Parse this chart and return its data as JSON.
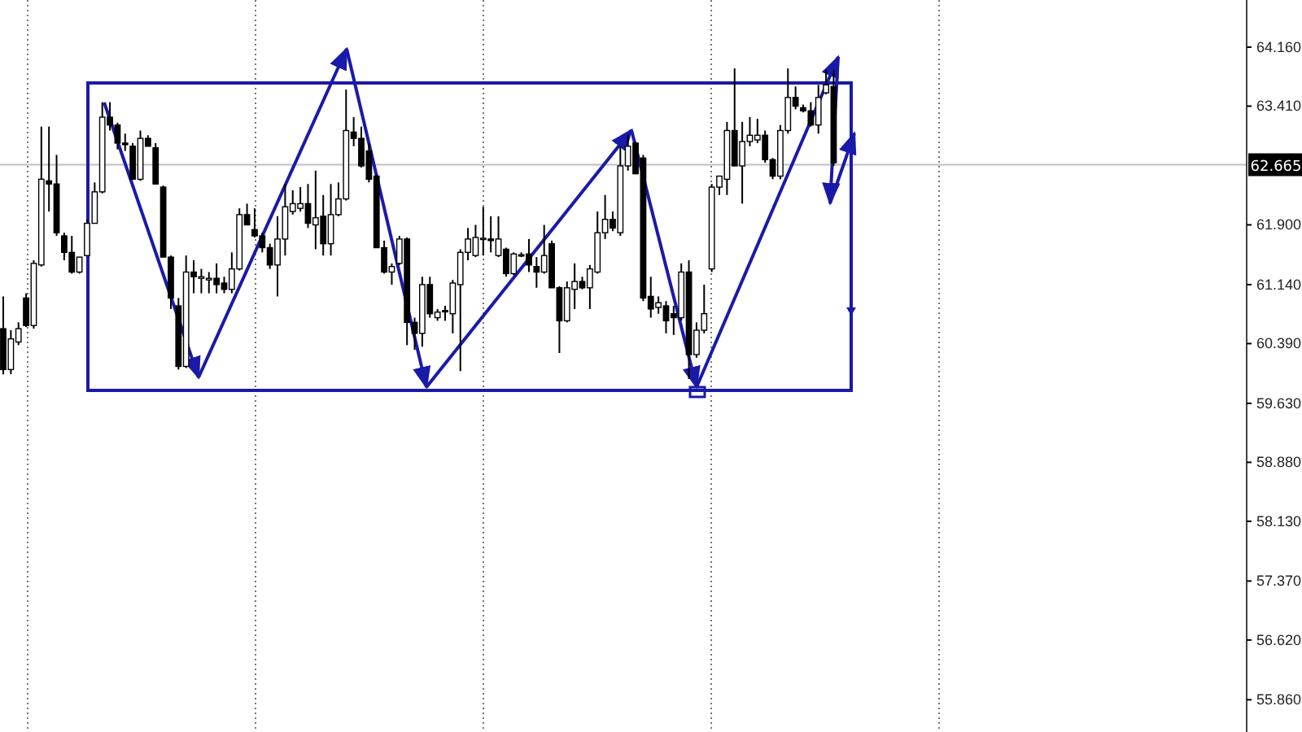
{
  "chart_data": {
    "type": "candlestick",
    "tick_labels": "y",
    "ylim": [
      55.45,
      64.76
    ],
    "yticks": [
      {
        "value": 64.16,
        "label": "64.160"
      },
      {
        "value": 63.41,
        "label": "63.410"
      },
      {
        "value": 61.9,
        "label": "61.900"
      },
      {
        "value": 61.14,
        "label": "61.140"
      },
      {
        "value": 60.39,
        "label": "60.390"
      },
      {
        "value": 59.63,
        "label": "59.630"
      },
      {
        "value": 58.88,
        "label": "58.880"
      },
      {
        "value": 58.13,
        "label": "58.130"
      },
      {
        "value": 57.37,
        "label": "57.370"
      },
      {
        "value": 56.62,
        "label": "56.620"
      },
      {
        "value": 55.86,
        "label": "55.860"
      }
    ],
    "ref_lines": [
      {
        "axis": "y",
        "value": 62.665,
        "label": "62.665",
        "color": "#c0c0c0"
      }
    ],
    "categories": [
      null,
      null,
      null,
      null,
      null,
      null,
      null,
      null,
      null,
      null,
      null,
      null,
      null,
      null,
      null,
      null,
      null,
      null,
      null,
      null,
      null,
      null,
      null,
      null,
      null,
      null,
      null,
      null,
      null,
      null,
      null,
      null,
      null,
      null,
      null,
      null,
      null,
      null,
      null,
      null,
      null,
      null,
      null,
      null,
      null,
      null,
      null,
      null,
      null,
      null,
      null,
      null,
      null,
      null,
      null,
      null,
      null,
      null,
      null,
      null,
      null,
      null,
      null,
      null,
      null,
      null,
      null,
      null,
      null,
      null,
      null,
      null,
      null,
      null,
      null,
      null,
      null,
      null,
      null,
      null,
      null,
      null,
      null,
      null,
      null,
      null,
      null,
      null,
      null,
      null,
      null,
      null,
      null,
      null,
      null,
      null,
      null,
      null,
      null,
      null,
      null,
      null,
      null,
      null,
      null,
      null,
      null,
      null,
      null,
      null,
      null,
      null,
      null,
      null,
      null,
      null,
      null,
      null,
      null,
      null,
      null,
      null,
      null,
      null,
      null,
      null,
      null,
      null,
      null,
      null,
      null,
      null,
      null,
      null,
      null,
      null,
      null,
      null,
      null,
      null,
      null,
      null,
      null,
      null,
      null,
      null,
      null,
      null,
      null,
      null,
      null,
      null,
      null,
      null,
      null,
      null,
      null,
      null,
      null,
      null,
      null,
      null,
      null,
      null
    ],
    "ohlc": [
      [
        60.58,
        60.99,
        60.0,
        60.06
      ],
      [
        60.06,
        60.56,
        60.0,
        60.45
      ],
      [
        60.41,
        60.66,
        60.37,
        60.58
      ],
      [
        60.97,
        61.03,
        60.6,
        60.62
      ],
      [
        60.62,
        61.45,
        60.58,
        61.41
      ],
      [
        61.39,
        63.15,
        61.37,
        62.48
      ],
      [
        62.46,
        63.15,
        62.07,
        62.42
      ],
      [
        62.42,
        62.79,
        61.76,
        61.8
      ],
      [
        61.76,
        61.8,
        61.45,
        61.55
      ],
      [
        61.55,
        61.76,
        61.28,
        61.3
      ],
      [
        61.3,
        61.49,
        61.28,
        61.49
      ],
      [
        61.51,
        61.97,
        61.51,
        61.92
      ],
      [
        61.92,
        62.44,
        61.92,
        62.32
      ],
      [
        62.32,
        63.46,
        62.3,
        63.27
      ],
      [
        63.27,
        63.46,
        63.1,
        63.17
      ],
      [
        63.17,
        63.2,
        62.86,
        62.94
      ],
      [
        62.94,
        63.06,
        62.84,
        62.92
      ],
      [
        62.9,
        62.94,
        62.48,
        62.48
      ],
      [
        62.48,
        63.1,
        62.46,
        63.0
      ],
      [
        63.0,
        63.04,
        62.9,
        62.9
      ],
      [
        62.88,
        62.94,
        62.42,
        62.42
      ],
      [
        62.38,
        62.4,
        61.49,
        61.49
      ],
      [
        61.49,
        61.51,
        60.83,
        60.97
      ],
      [
        60.87,
        60.97,
        60.06,
        60.1
      ],
      [
        60.1,
        61.51,
        60.08,
        61.3
      ],
      [
        61.3,
        61.45,
        61.03,
        61.24
      ],
      [
        61.22,
        61.34,
        61.03,
        61.24
      ],
      [
        61.2,
        61.3,
        61.03,
        61.22
      ],
      [
        61.22,
        61.41,
        61.03,
        61.14
      ],
      [
        61.16,
        61.24,
        61.03,
        61.08
      ],
      [
        61.08,
        61.55,
        61.03,
        61.34
      ],
      [
        61.34,
        62.11,
        61.32,
        62.03
      ],
      [
        62.03,
        62.17,
        61.9,
        61.9
      ],
      [
        61.84,
        62.11,
        61.74,
        61.76
      ],
      [
        61.76,
        61.8,
        61.55,
        61.61
      ],
      [
        61.61,
        61.66,
        61.34,
        61.39
      ],
      [
        61.39,
        62.01,
        60.99,
        61.72
      ],
      [
        61.72,
        62.42,
        61.51,
        62.13
      ],
      [
        62.07,
        62.34,
        62.03,
        62.17
      ],
      [
        62.11,
        62.38,
        62.07,
        62.17
      ],
      [
        62.17,
        62.42,
        61.86,
        61.92
      ],
      [
        61.9,
        62.59,
        61.59,
        61.99
      ],
      [
        62.01,
        62.28,
        61.51,
        61.66
      ],
      [
        61.66,
        62.42,
        61.51,
        62.03
      ],
      [
        62.03,
        62.44,
        62.01,
        62.23
      ],
      [
        62.23,
        63.62,
        62.21,
        63.1
      ],
      [
        63.08,
        63.27,
        62.9,
        63.0
      ],
      [
        63.0,
        63.15,
        62.63,
        62.65
      ],
      [
        62.84,
        62.94,
        62.44,
        62.48
      ],
      [
        62.52,
        62.54,
        61.61,
        61.61
      ],
      [
        61.61,
        61.7,
        61.28,
        61.3
      ],
      [
        61.3,
        61.41,
        61.14,
        61.37
      ],
      [
        61.41,
        61.76,
        61.39,
        61.72
      ],
      [
        61.72,
        61.74,
        60.37,
        60.66
      ],
      [
        60.66,
        60.72,
        60.31,
        60.52
      ],
      [
        60.52,
        61.24,
        60.35,
        61.14
      ],
      [
        61.14,
        61.24,
        60.72,
        60.77
      ],
      [
        60.72,
        60.83,
        60.68,
        60.79
      ],
      [
        60.81,
        60.87,
        60.68,
        60.8
      ],
      [
        60.77,
        61.2,
        60.52,
        61.16
      ],
      [
        61.14,
        61.59,
        60.04,
        61.55
      ],
      [
        61.55,
        61.86,
        61.45,
        61.72
      ],
      [
        61.51,
        61.9,
        61.49,
        61.74
      ],
      [
        61.72,
        62.13,
        61.51,
        61.73
      ],
      [
        61.72,
        62.01,
        61.55,
        61.7
      ],
      [
        61.51,
        62.01,
        61.49,
        61.72
      ],
      [
        61.59,
        61.61,
        61.24,
        61.28
      ],
      [
        61.28,
        61.55,
        61.26,
        61.53
      ],
      [
        61.51,
        61.55,
        61.49,
        61.52
      ],
      [
        61.53,
        61.72,
        61.3,
        61.39
      ],
      [
        61.37,
        61.49,
        61.1,
        61.3
      ],
      [
        61.3,
        61.9,
        61.28,
        61.51
      ],
      [
        61.66,
        61.7,
        61.1,
        61.1
      ],
      [
        61.1,
        61.12,
        60.27,
        60.68
      ],
      [
        60.68,
        61.18,
        60.66,
        61.1
      ],
      [
        61.08,
        61.41,
        60.83,
        61.18
      ],
      [
        61.18,
        61.24,
        61.08,
        61.1
      ],
      [
        61.1,
        61.39,
        60.83,
        61.34
      ],
      [
        61.3,
        62.07,
        61.28,
        61.8
      ],
      [
        61.8,
        62.28,
        61.72,
        61.97
      ],
      [
        61.97,
        62.07,
        61.82,
        61.86
      ],
      [
        61.8,
        62.9,
        61.76,
        62.65
      ],
      [
        62.65,
        63.04,
        62.59,
        62.9
      ],
      [
        62.94,
        62.96,
        62.55,
        62.55
      ],
      [
        62.75,
        62.79,
        60.93,
        60.97
      ],
      [
        60.99,
        61.24,
        60.72,
        60.83
      ],
      [
        60.85,
        60.99,
        60.77,
        60.91
      ],
      [
        60.87,
        60.93,
        60.52,
        60.68
      ],
      [
        60.77,
        60.87,
        60.5,
        60.72
      ],
      [
        60.72,
        61.41,
        60.68,
        61.3
      ],
      [
        61.3,
        61.45,
        59.94,
        60.25
      ],
      [
        60.25,
        60.66,
        60.21,
        60.56
      ],
      [
        60.56,
        61.14,
        60.52,
        60.77
      ],
      [
        61.34,
        62.42,
        61.3,
        62.38
      ],
      [
        62.38,
        62.52,
        62.28,
        62.52
      ],
      [
        62.48,
        63.21,
        62.28,
        63.1
      ],
      [
        63.1,
        63.89,
        62.65,
        62.65
      ],
      [
        62.65,
        63.21,
        62.17,
        62.96
      ],
      [
        62.96,
        63.27,
        62.9,
        63.04
      ],
      [
        62.98,
        63.25,
        62.94,
        63.04
      ],
      [
        63.04,
        63.1,
        62.69,
        62.73
      ],
      [
        62.73,
        62.75,
        62.48,
        62.52
      ],
      [
        62.52,
        63.17,
        62.48,
        63.1
      ],
      [
        63.1,
        63.89,
        63.06,
        63.52
      ],
      [
        63.52,
        63.66,
        63.37,
        63.41
      ],
      [
        63.39,
        63.43,
        63.33,
        63.35
      ],
      [
        63.35,
        63.46,
        63.15,
        63.17
      ],
      [
        63.17,
        63.68,
        63.06,
        63.52
      ],
      [
        63.58,
        63.87,
        63.56,
        63.68
      ],
      [
        63.66,
        63.87,
        62.65,
        62.69
      ],
      null,
      null,
      null,
      null,
      null,
      null,
      null,
      null,
      null,
      null,
      null,
      null,
      null,
      null,
      null,
      null,
      null,
      null,
      null,
      null,
      null,
      null,
      null,
      null,
      null,
      null,
      null,
      null,
      null,
      null,
      null,
      null,
      null,
      null,
      null,
      null,
      null,
      null,
      null,
      null,
      null,
      null,
      null,
      null,
      null,
      null,
      null,
      null,
      null,
      null,
      null,
      null,
      null,
      null
    ]
  }
}
